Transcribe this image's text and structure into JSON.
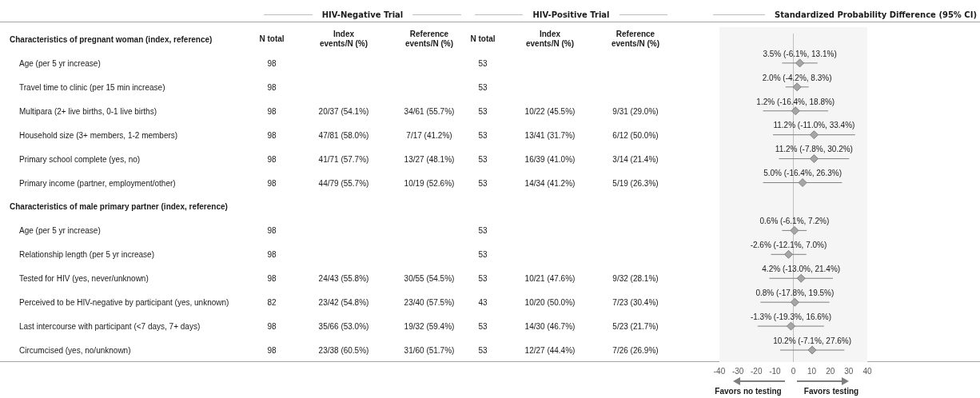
{
  "chart_data": [
    {
      "type": "other",
      "annotations": [
        "HIV-Negative Trial",
        "HIV-Positive Trial"
      ],
      "categories": [
        "N total",
        "Index events/N (%)",
        "Reference events/N (%)",
        "N total",
        "Index events/N (%)",
        "Reference events/N (%)"
      ],
      "y_categories": [
        "Characteristics of pregnant woman (index, reference)",
        "Age (per 5 yr increase)",
        "Travel time to clinic (per 15 min increase)",
        "Multipara (2+ live births, 0-1 live births)",
        "Household size (3+ members, 1-2 members)",
        "Primary school complete (yes, no)",
        "Primary income (partner, employment/other)",
        "Characteristics of male primary partner (index, reference)",
        "Age (per 5 yr increase)",
        "Relationship length (per 5 yr increase)",
        "Tested for HIV (yes, never/unknown)",
        "Perceived to be HIV-negative by participant (yes, unknown)",
        "Last intercourse with participant (<7 days, 7+ days)",
        "Circumcised (yes, no/unknown)"
      ],
      "cell_labels": [
        [
          null,
          null,
          null,
          null,
          null,
          null
        ],
        [
          "98",
          null,
          null,
          "53",
          null,
          null
        ],
        [
          "98",
          null,
          null,
          "53",
          null,
          null
        ],
        [
          "98",
          "20/37 (54.1%)",
          "34/61 (55.7%)",
          "53",
          "10/22 (45.5%)",
          "9/31 (29.0%)"
        ],
        [
          "98",
          "47/81 (58.0%)",
          "7/17 (41.2%)",
          "53",
          "13/41 (31.7%)",
          "6/12 (50.0%)"
        ],
        [
          "98",
          "41/71 (57.7%)",
          "13/27 (48.1%)",
          "53",
          "16/39 (41.0%)",
          "3/14 (21.4%)"
        ],
        [
          "98",
          "44/79 (55.7%)",
          "10/19 (52.6%)",
          "53",
          "14/34 (41.2%)",
          "5/19 (26.3%)"
        ],
        [
          null,
          null,
          null,
          null,
          null,
          null
        ],
        [
          "98",
          null,
          null,
          "53",
          null,
          null
        ],
        [
          "98",
          null,
          null,
          "53",
          null,
          null
        ],
        [
          "98",
          "24/43 (55.8%)",
          "30/55 (54.5%)",
          "53",
          "10/21 (47.6%)",
          "9/32 (28.1%)"
        ],
        [
          "82",
          "23/42 (54.8%)",
          "23/40 (57.5%)",
          "43",
          "10/20 (50.0%)",
          "7/23 (30.4%)"
        ],
        [
          "98",
          "35/66 (53.0%)",
          "19/32 (59.4%)",
          "53",
          "14/30 (46.7%)",
          "5/23 (21.7%)"
        ],
        [
          "98",
          "23/38 (60.5%)",
          "31/60 (51.7%)",
          "53",
          "12/27 (44.4%)",
          "7/26 (26.9%)"
        ]
      ]
    },
    {
      "type": "scatter",
      "title": "Standardized Probability Difference (95% CI)",
      "orientation": "horizontal",
      "marker": "diamond",
      "color": "#a6a6a6",
      "categories": [
        null,
        null,
        null,
        null,
        null,
        null,
        null,
        null,
        null,
        null,
        null,
        null,
        null,
        null
      ],
      "values": [
        null,
        3.5,
        2.0,
        1.2,
        11.2,
        11.2,
        5.0,
        null,
        0.6,
        -2.6,
        4.2,
        0.8,
        -1.3,
        10.2
      ],
      "errors": [
        null,
        [
          -6.1,
          13.1
        ],
        [
          -4.2,
          8.3
        ],
        [
          -16.4,
          18.8
        ],
        [
          -11.0,
          33.4
        ],
        [
          -7.8,
          30.2
        ],
        [
          -16.4,
          26.3
        ],
        null,
        [
          -6.1,
          7.2
        ],
        [
          -12.1,
          7.0
        ],
        [
          -13.0,
          21.4
        ],
        [
          -17.8,
          19.5
        ],
        [
          -19.3,
          16.6
        ],
        [
          -7.1,
          27.6
        ]
      ],
      "value_labels": [
        null,
        "3.5% (-6.1%, 13.1%)",
        "2.0% (-4.2%, 8.3%)",
        "1.2% (-16.4%, 18.8%)",
        "11.2% (-11.0%, 33.4%)",
        "11.2% (-7.8%, 30.2%)",
        "5.0% (-16.4%, 26.3%)",
        null,
        "0.6% (-6.1%, 7.2%)",
        "-2.6% (-12.1%, 7.0%)",
        "4.2% (-13.0%, 21.4%)",
        "0.8% (-17.8%, 19.5%)",
        "-1.3% (-19.3%, 16.6%)",
        "10.2% (-7.1%, 27.6%)"
      ],
      "xlim": [
        -40,
        40
      ],
      "xticks": [
        -40,
        -30,
        -20,
        -10,
        0,
        10,
        20,
        30,
        40
      ],
      "ref_lines": [
        {
          "axis": "x",
          "value": 0,
          "color": "#bfbfbf"
        }
      ],
      "annotations": [
        "Favors no testing",
        "Favors testing"
      ]
    }
  ]
}
